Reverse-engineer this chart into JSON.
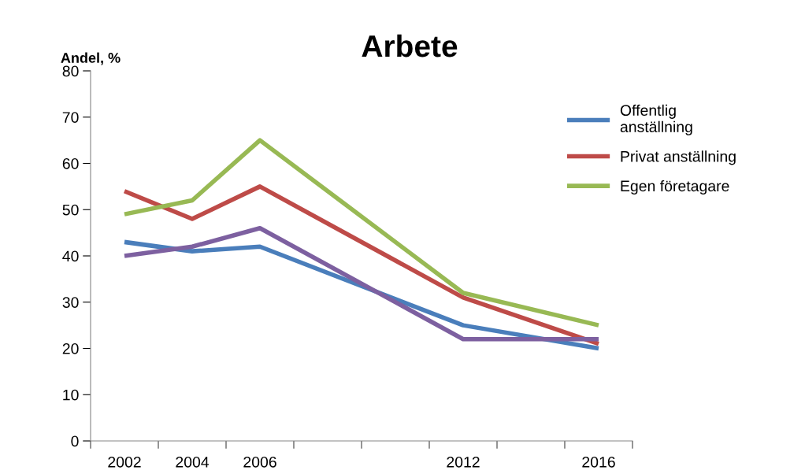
{
  "chart_data": {
    "type": "line",
    "title": "Arbete",
    "ylabel": "Andel, %",
    "categories": [
      "2002",
      "2004",
      "2006",
      null,
      null,
      "2012",
      null,
      "2016"
    ],
    "series": [
      {
        "name": "Offentlig anställning",
        "color": "#4a7ebb",
        "values": [
          43,
          41,
          42,
          null,
          null,
          25,
          null,
          20
        ]
      },
      {
        "name": "Privat anställning",
        "color": "#be4b48",
        "values": [
          54,
          48,
          55,
          null,
          null,
          31,
          null,
          21
        ]
      },
      {
        "name": "Egen företagare",
        "color": "#98b954",
        "values": [
          49,
          52,
          65,
          null,
          null,
          32,
          null,
          25
        ]
      },
      {
        "color": "#7d60a0",
        "values": [
          40,
          42,
          46,
          null,
          null,
          22,
          null,
          22
        ]
      }
    ],
    "ylim": [
      0,
      80
    ],
    "yticks": [
      0,
      10,
      20,
      30,
      40,
      50,
      60,
      70,
      80
    ],
    "grid": false,
    "legend": "right",
    "marker": "none",
    "line_style": "solid"
  }
}
